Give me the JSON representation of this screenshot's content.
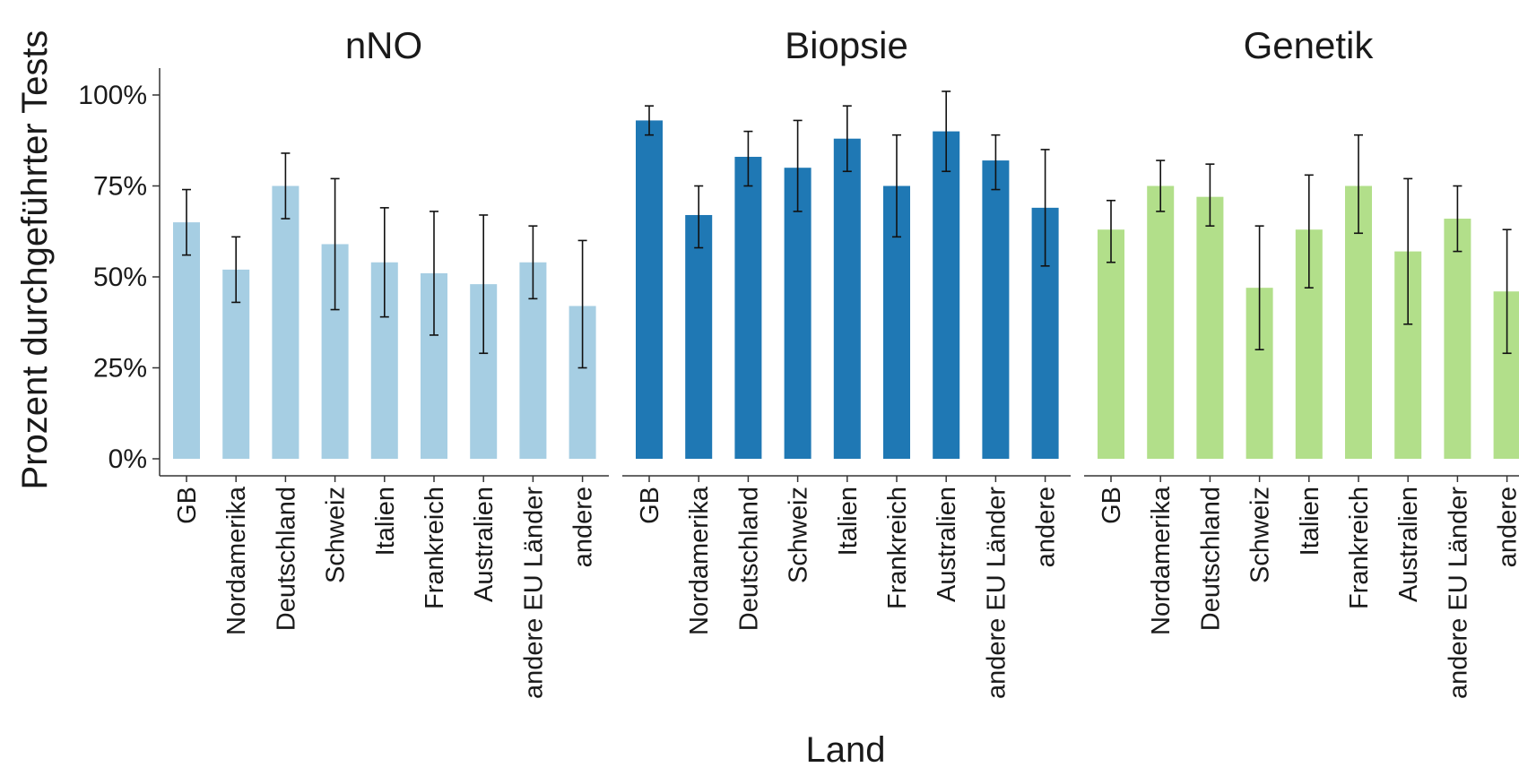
{
  "chart_data": {
    "type": "bar",
    "xlabel": "Land",
    "ylabel": "Prozent durchgeführter Tests",
    "ylim": [
      0,
      1.05
    ],
    "yticks": [
      0,
      0.25,
      0.5,
      0.75,
      1.0
    ],
    "ytick_labels": [
      "0%",
      "25%",
      "50%",
      "75%",
      "100%"
    ],
    "grid": false,
    "legend": "none",
    "categories": [
      "GB",
      "Nordamerika",
      "Deutschland",
      "Schweiz",
      "Italien",
      "Frankreich",
      "Australien",
      "andere EU Länder",
      "andere"
    ],
    "panels": [
      {
        "title": "nNO",
        "color": "#a6cee3",
        "values": [
          0.65,
          0.52,
          0.75,
          0.59,
          0.54,
          0.51,
          0.48,
          0.54,
          0.42
        ],
        "err_low": [
          0.56,
          0.43,
          0.66,
          0.41,
          0.39,
          0.34,
          0.29,
          0.44,
          0.25
        ],
        "err_high": [
          0.74,
          0.61,
          0.84,
          0.77,
          0.69,
          0.68,
          0.67,
          0.64,
          0.6
        ]
      },
      {
        "title": "Biopsie",
        "color": "#1f78b4",
        "values": [
          0.93,
          0.67,
          0.83,
          0.8,
          0.88,
          0.75,
          0.9,
          0.82,
          0.69
        ],
        "err_low": [
          0.89,
          0.58,
          0.75,
          0.68,
          0.79,
          0.61,
          0.79,
          0.74,
          0.53
        ],
        "err_high": [
          0.97,
          0.75,
          0.9,
          0.93,
          0.97,
          0.89,
          1.01,
          0.89,
          0.85
        ]
      },
      {
        "title": "Genetik",
        "color": "#b2df8a",
        "values": [
          0.63,
          0.75,
          0.72,
          0.47,
          0.63,
          0.75,
          0.57,
          0.66,
          0.46
        ],
        "err_low": [
          0.54,
          0.68,
          0.64,
          0.3,
          0.47,
          0.62,
          0.37,
          0.57,
          0.29
        ],
        "err_high": [
          0.71,
          0.82,
          0.81,
          0.64,
          0.78,
          0.89,
          0.77,
          0.75,
          0.63
        ]
      }
    ]
  }
}
